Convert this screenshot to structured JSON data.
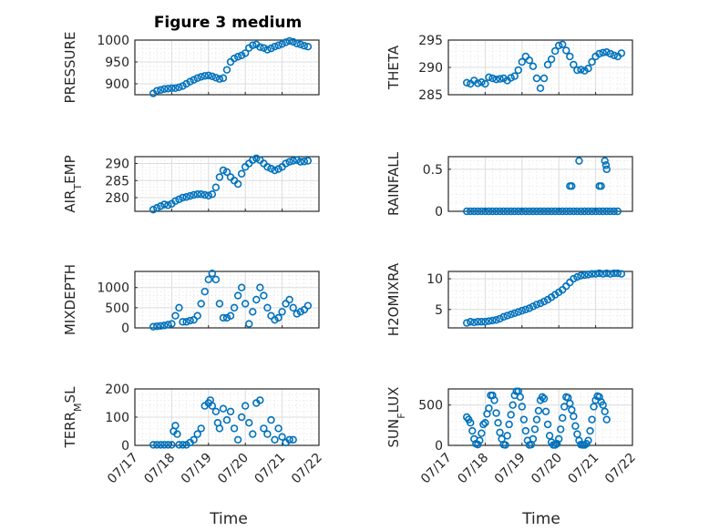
{
  "figure": {
    "title": "Figure 3 medium",
    "marker_color": "#0072BD"
  },
  "chart_data": [
    {
      "type": "scatter",
      "id": "pressure",
      "ylabel": "PRESSURE",
      "ylim": [
        875,
        1000
      ],
      "yticks": [
        900,
        950,
        1000
      ],
      "xlim": [
        17,
        22
      ],
      "xticks": [
        17,
        18,
        19,
        20,
        21,
        22
      ],
      "xticklabels": [
        "07/17",
        "07/18",
        "07/19",
        "07/20",
        "07/21",
        "07/22"
      ],
      "grid": true,
      "minor_grid": true,
      "x": [
        17.5,
        17.6,
        17.7,
        17.8,
        17.9,
        18.0,
        18.1,
        18.2,
        18.3,
        18.4,
        18.5,
        18.6,
        18.7,
        18.8,
        18.9,
        19.0,
        19.1,
        19.2,
        19.3,
        19.4,
        19.5,
        19.6,
        19.7,
        19.8,
        19.9,
        20.0,
        20.1,
        20.2,
        20.3,
        20.4,
        20.5,
        20.6,
        20.7,
        20.8,
        20.9,
        21.0,
        21.1,
        21.2,
        21.3,
        21.4,
        21.5,
        21.6,
        21.7
      ],
      "y": [
        878,
        884,
        886,
        888,
        889,
        890,
        890,
        892,
        895,
        900,
        905,
        909,
        913,
        916,
        918,
        919,
        917,
        914,
        911,
        913,
        932,
        950,
        958,
        962,
        965,
        970,
        982,
        988,
        990,
        984,
        982,
        978,
        981,
        985,
        988,
        991,
        995,
        998,
        996,
        992,
        990,
        987,
        985
      ]
    },
    {
      "type": "scatter",
      "id": "theta",
      "ylabel": "THETA",
      "ylim": [
        285,
        295
      ],
      "yticks": [
        285,
        290,
        295
      ],
      "xlim": [
        17,
        22
      ],
      "xticks": [
        17,
        18,
        19,
        20,
        21,
        22
      ],
      "xticklabels": [
        "07/17",
        "07/18",
        "07/19",
        "07/20",
        "07/21",
        "07/22"
      ],
      "grid": true,
      "minor_grid": true,
      "x": [
        17.5,
        17.6,
        17.7,
        17.8,
        17.9,
        18.0,
        18.1,
        18.2,
        18.3,
        18.4,
        18.5,
        18.6,
        18.7,
        18.8,
        18.9,
        19.0,
        19.1,
        19.2,
        19.3,
        19.4,
        19.5,
        19.6,
        19.7,
        19.8,
        19.9,
        20.0,
        20.1,
        20.2,
        20.3,
        20.4,
        20.5,
        20.6,
        20.7,
        20.8,
        20.9,
        21.0,
        21.1,
        21.2,
        21.3,
        21.4,
        21.5,
        21.6,
        21.7
      ],
      "y": [
        287.2,
        287.0,
        287.6,
        287.1,
        287.3,
        287.0,
        288.2,
        288.0,
        287.8,
        287.9,
        288.0,
        287.6,
        288.1,
        288.4,
        289.5,
        291.0,
        292.0,
        291.3,
        290.2,
        288.0,
        286.2,
        288.0,
        290.5,
        291.5,
        293.0,
        294.0,
        294.2,
        293.1,
        292.0,
        290.5,
        289.5,
        289.6,
        289.4,
        289.8,
        291.0,
        292.0,
        292.5,
        292.7,
        292.8,
        292.5,
        292.2,
        292.0,
        292.6
      ]
    },
    {
      "type": "scatter",
      "id": "air-temp",
      "ylabel": "AIR_TEMP",
      "ylim": [
        276,
        292
      ],
      "yticks": [
        280,
        285,
        290
      ],
      "xlim": [
        17,
        22
      ],
      "xticks": [
        17,
        18,
        19,
        20,
        21,
        22
      ],
      "xticklabels": [
        "07/17",
        "07/18",
        "07/19",
        "07/20",
        "07/21",
        "07/22"
      ],
      "grid": true,
      "minor_grid": true,
      "x": [
        17.5,
        17.6,
        17.7,
        17.8,
        17.9,
        18.0,
        18.1,
        18.2,
        18.3,
        18.4,
        18.5,
        18.6,
        18.7,
        18.8,
        18.9,
        19.0,
        19.1,
        19.2,
        19.3,
        19.4,
        19.5,
        19.6,
        19.7,
        19.8,
        19.9,
        20.0,
        20.1,
        20.2,
        20.3,
        20.4,
        20.5,
        20.6,
        20.7,
        20.8,
        20.9,
        21.0,
        21.1,
        21.2,
        21.3,
        21.4,
        21.5,
        21.6,
        21.7
      ],
      "y": [
        276.5,
        277.0,
        277.5,
        278.0,
        277.8,
        278.2,
        279.0,
        279.5,
        280.0,
        280.2,
        280.5,
        280.8,
        281.0,
        281.0,
        280.8,
        280.6,
        281.0,
        283.0,
        286.0,
        288.0,
        287.5,
        286.0,
        285.0,
        284.0,
        287.0,
        289.0,
        290.0,
        291.0,
        291.5,
        291.0,
        290.0,
        289.0,
        288.5,
        288.0,
        288.4,
        289.0,
        290.0,
        290.5,
        290.8,
        291.0,
        290.5,
        290.6,
        290.8
      ]
    },
    {
      "type": "scatter",
      "id": "rainfall",
      "ylabel": "RAINFALL",
      "ylim": [
        0,
        0.65
      ],
      "yticks": [
        0,
        0.5
      ],
      "yticklabels": [
        "0",
        "0.5"
      ],
      "xlim": [
        17,
        22
      ],
      "xticks": [
        17,
        18,
        19,
        20,
        21,
        22
      ],
      "xticklabels": [
        "07/17",
        "07/18",
        "07/19",
        "07/20",
        "07/21",
        "07/22"
      ],
      "grid": true,
      "minor_grid": true,
      "x": [
        17.5,
        17.6,
        17.7,
        17.8,
        17.9,
        18.0,
        18.1,
        18.2,
        18.3,
        18.4,
        18.5,
        18.6,
        18.7,
        18.8,
        18.9,
        19.0,
        19.1,
        19.2,
        19.3,
        19.4,
        19.5,
        19.6,
        19.7,
        19.8,
        19.9,
        20.0,
        20.1,
        20.2,
        20.3,
        20.4,
        20.5,
        20.6,
        20.7,
        20.8,
        20.9,
        21.0,
        21.1,
        21.2,
        21.3,
        21.4,
        21.5,
        21.6,
        20.3,
        20.35,
        20.55,
        21.1,
        21.15,
        21.25,
        21.28,
        21.3
      ],
      "y": [
        0,
        0,
        0,
        0,
        0,
        0,
        0,
        0,
        0,
        0,
        0,
        0,
        0,
        0,
        0,
        0,
        0,
        0,
        0,
        0,
        0,
        0,
        0,
        0,
        0,
        0,
        0,
        0,
        0,
        0,
        0,
        0,
        0,
        0,
        0,
        0,
        0,
        0,
        0,
        0,
        0,
        0,
        0.3,
        0.3,
        0.6,
        0.3,
        0.3,
        0.6,
        0.55,
        0.5
      ]
    },
    {
      "type": "scatter",
      "id": "mixdepth",
      "ylabel": "MIXDEPTH",
      "ylim": [
        0,
        1400
      ],
      "yticks": [
        0,
        500,
        1000
      ],
      "xlim": [
        17,
        22
      ],
      "xticks": [
        17,
        18,
        19,
        20,
        21,
        22
      ],
      "xticklabels": [
        "07/17",
        "07/18",
        "07/19",
        "07/20",
        "07/21",
        "07/22"
      ],
      "grid": true,
      "minor_grid": true,
      "x": [
        17.5,
        17.6,
        17.7,
        17.8,
        17.9,
        18.0,
        18.1,
        18.2,
        18.3,
        18.4,
        18.5,
        18.6,
        18.7,
        18.8,
        18.9,
        19.0,
        19.1,
        19.2,
        19.3,
        19.4,
        19.5,
        19.6,
        19.7,
        19.8,
        19.9,
        20.0,
        20.1,
        20.2,
        20.3,
        20.4,
        20.5,
        20.6,
        20.7,
        20.8,
        20.9,
        21.0,
        21.1,
        21.2,
        21.3,
        21.4,
        21.5,
        21.6,
        21.7
      ],
      "y": [
        30,
        40,
        50,
        60,
        80,
        100,
        300,
        500,
        150,
        150,
        180,
        200,
        300,
        600,
        900,
        1200,
        1350,
        1200,
        600,
        250,
        250,
        300,
        500,
        800,
        1000,
        600,
        100,
        400,
        700,
        1000,
        800,
        500,
        300,
        200,
        250,
        400,
        600,
        700,
        500,
        350,
        400,
        450,
        550
      ]
    },
    {
      "type": "scatter",
      "id": "h2omixra",
      "ylabel": "H2OMIXRA",
      "ylim": [
        2,
        11.2
      ],
      "yticks": [
        5,
        10
      ],
      "xlim": [
        17,
        22
      ],
      "xticks": [
        17,
        18,
        19,
        20,
        21,
        22
      ],
      "xticklabels": [
        "07/17",
        "07/18",
        "07/19",
        "07/20",
        "07/21",
        "07/22"
      ],
      "grid": true,
      "minor_grid": true,
      "x": [
        17.5,
        17.6,
        17.7,
        17.8,
        17.9,
        18.0,
        18.1,
        18.2,
        18.3,
        18.4,
        18.5,
        18.6,
        18.7,
        18.8,
        18.9,
        19.0,
        19.1,
        19.2,
        19.3,
        19.4,
        19.5,
        19.6,
        19.7,
        19.8,
        19.9,
        20.0,
        20.1,
        20.2,
        20.3,
        20.4,
        20.5,
        20.6,
        20.7,
        20.8,
        20.9,
        21.0,
        21.1,
        21.2,
        21.3,
        21.4,
        21.5,
        21.6,
        21.7
      ],
      "y": [
        2.8,
        3.0,
        2.9,
        3.0,
        3.0,
        3.0,
        3.1,
        3.2,
        3.3,
        3.5,
        3.8,
        4.0,
        4.2,
        4.4,
        4.6,
        4.8,
        5.0,
        5.2,
        5.5,
        5.8,
        6.0,
        6.3,
        6.6,
        7.0,
        7.4,
        7.8,
        8.2,
        8.8,
        9.4,
        10.0,
        10.3,
        10.5,
        10.6,
        10.7,
        10.8,
        10.8,
        10.9,
        10.8,
        10.9,
        10.8,
        10.9,
        10.9,
        10.8
      ]
    },
    {
      "type": "scatter",
      "id": "terr-msl",
      "ylabel": "TERR_MSL",
      "ylim": [
        0,
        200
      ],
      "yticks": [
        0,
        100,
        200
      ],
      "xlim": [
        17,
        22
      ],
      "xticks": [
        17,
        18,
        19,
        20,
        21,
        22
      ],
      "xticklabels": [
        "07/17",
        "07/18",
        "07/19",
        "07/20",
        "07/21",
        "07/22"
      ],
      "grid": true,
      "minor_grid": true,
      "x": [
        17.5,
        17.6,
        17.7,
        17.8,
        17.9,
        18.0,
        18.05,
        18.1,
        18.15,
        18.2,
        18.3,
        18.4,
        18.5,
        18.6,
        18.7,
        18.8,
        18.9,
        19.0,
        19.05,
        19.1,
        19.2,
        19.25,
        19.3,
        19.4,
        19.5,
        19.6,
        19.7,
        19.8,
        19.9,
        20.0,
        20.1,
        20.2,
        20.3,
        20.4,
        20.5,
        20.6,
        20.7,
        20.8,
        20.9,
        21.0,
        21.1,
        21.2,
        21.3
      ],
      "y": [
        2,
        2,
        2,
        2,
        2,
        2,
        50,
        70,
        40,
        2,
        2,
        2,
        10,
        20,
        40,
        60,
        140,
        150,
        160,
        140,
        120,
        80,
        60,
        130,
        90,
        120,
        60,
        20,
        100,
        140,
        80,
        40,
        150,
        160,
        60,
        40,
        90,
        20,
        60,
        30,
        10,
        20,
        20
      ]
    },
    {
      "type": "scatter",
      "id": "sun-flux",
      "ylabel": "SUN_FLUX",
      "ylim": [
        0,
        700
      ],
      "yticks": [
        0,
        500
      ],
      "xlim": [
        17,
        22
      ],
      "xticks": [
        17,
        18,
        19,
        20,
        21,
        22
      ],
      "xticklabels": [
        "07/17",
        "07/18",
        "07/19",
        "07/20",
        "07/21",
        "07/22"
      ],
      "grid": true,
      "minor_grid": true,
      "x": [
        17.5,
        17.55,
        17.6,
        17.65,
        17.7,
        17.75,
        17.8,
        17.85,
        17.9,
        17.95,
        18.0,
        18.05,
        18.1,
        18.15,
        18.2,
        18.25,
        18.3,
        18.35,
        18.4,
        18.45,
        18.5,
        18.55,
        18.6,
        18.65,
        18.7,
        18.75,
        18.8,
        18.85,
        18.9,
        18.95,
        19.0,
        19.05,
        19.1,
        19.15,
        19.2,
        19.25,
        19.3,
        19.35,
        19.4,
        19.45,
        19.5,
        19.55,
        19.6,
        19.65,
        19.7,
        19.75,
        19.8,
        19.85,
        19.9,
        19.95,
        20.0,
        20.05,
        20.1,
        20.15,
        20.2,
        20.25,
        20.3,
        20.35,
        20.4,
        20.45,
        20.5,
        20.55,
        20.6,
        20.65,
        20.7,
        20.75,
        20.8,
        20.85,
        20.9,
        20.95,
        21.0,
        21.05,
        21.1,
        21.15,
        21.2,
        21.25,
        21.3
      ],
      "y": [
        350,
        320,
        280,
        180,
        80,
        20,
        10,
        60,
        150,
        260,
        280,
        390,
        460,
        620,
        620,
        560,
        400,
        280,
        160,
        80,
        10,
        5,
        120,
        260,
        380,
        500,
        620,
        670,
        670,
        600,
        480,
        320,
        180,
        60,
        5,
        10,
        80,
        200,
        320,
        430,
        560,
        600,
        580,
        420,
        260,
        120,
        40,
        5,
        5,
        20,
        80,
        200,
        340,
        480,
        600,
        590,
        520,
        440,
        360,
        240,
        140,
        60,
        10,
        5,
        5,
        20,
        60,
        180,
        320,
        480,
        560,
        610,
        600,
        540,
        500,
        420,
        320
      ]
    }
  ],
  "x_axis_label": "Time"
}
